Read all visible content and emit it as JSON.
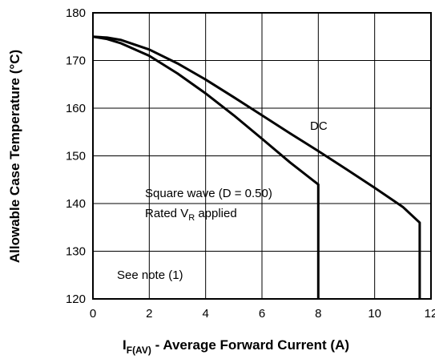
{
  "chart_data": {
    "type": "line",
    "xlabel_main": "I",
    "xlabel_sub": "F(AV)",
    "xlabel_rest": " - Average Forward Current (A)",
    "ylabel": "Allowable Case Temperature (°C)",
    "xlim": [
      0,
      12
    ],
    "ylim": [
      120,
      180
    ],
    "x_ticks": [
      0,
      2,
      4,
      6,
      8,
      10,
      12
    ],
    "y_ticks": [
      120,
      130,
      140,
      150,
      160,
      170,
      180
    ],
    "grid": true,
    "series": [
      {
        "id": "dc",
        "x": [
          0,
          0.5,
          1,
          2,
          3,
          4,
          5,
          6,
          7,
          8,
          9,
          10,
          11,
          11.6,
          11.6
        ],
        "y": [
          175,
          174.8,
          174.3,
          172.3,
          169.4,
          166.0,
          162.3,
          158.5,
          154.7,
          151.0,
          147.2,
          143.3,
          139.3,
          136.0,
          120
        ]
      },
      {
        "id": "square",
        "x": [
          0,
          0.5,
          1,
          2,
          3,
          4,
          5,
          6,
          7,
          8,
          8,
          8
        ],
        "y": [
          175,
          174.5,
          173.6,
          171.0,
          167.3,
          163.1,
          158.5,
          153.6,
          148.6,
          144.0,
          143.8,
          120
        ]
      }
    ],
    "annotations": {
      "dc_label": "DC",
      "square_line1": "Square wave (D = 0.50)",
      "square_line2_main": "Rated V",
      "square_line2_sub": "R",
      "square_line2_rest": " applied",
      "note": "See note (1)"
    }
  }
}
